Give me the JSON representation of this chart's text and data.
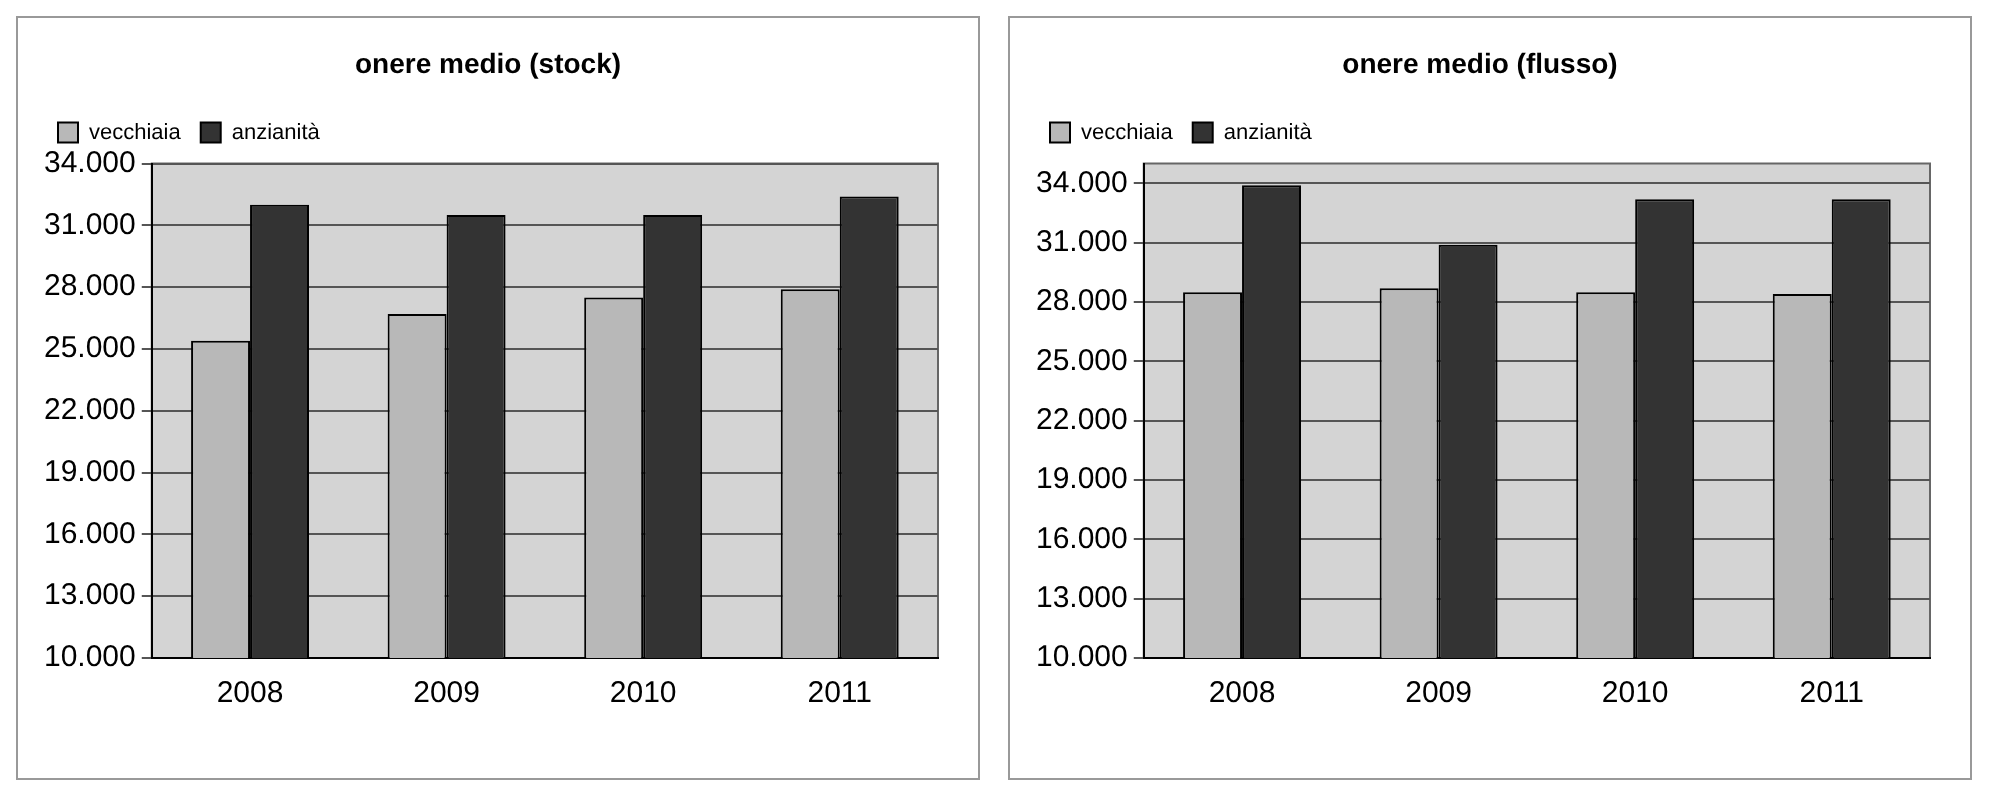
{
  "chart_data": [
    {
      "type": "bar",
      "title": "onere medio (stock)",
      "categories": [
        "2008",
        "2009",
        "2010",
        "2011"
      ],
      "series": [
        {
          "name": "vecchiaia",
          "color": "#b8b8b8",
          "values": [
            25400,
            26700,
            27500,
            27900
          ]
        },
        {
          "name": "anzianità",
          "color": "#333333",
          "values": [
            32000,
            31500,
            31500,
            32400
          ]
        }
      ],
      "ylim": [
        10000,
        34000
      ],
      "yticks": [
        {
          "value": 10000,
          "label": "10.000"
        },
        {
          "value": 13000,
          "label": "13.000"
        },
        {
          "value": 16000,
          "label": "16.000"
        },
        {
          "value": 19000,
          "label": "19.000"
        },
        {
          "value": 22000,
          "label": "22.000"
        },
        {
          "value": 25000,
          "label": "25.000"
        },
        {
          "value": 28000,
          "label": "28.000"
        },
        {
          "value": 31000,
          "label": "31.000"
        },
        {
          "value": 34000,
          "label": "34.000"
        }
      ],
      "grid": "y",
      "legend": "top left"
    },
    {
      "type": "bar",
      "title": "onere medio (flusso)",
      "categories": [
        "2008",
        "2009",
        "2010",
        "2011"
      ],
      "series": [
        {
          "name": "vecchiaia",
          "color": "#b8b8b8",
          "values": [
            28500,
            28700,
            28500,
            28400
          ]
        },
        {
          "name": "anzianità",
          "color": "#333333",
          "values": [
            33900,
            30900,
            33200,
            33200
          ]
        }
      ],
      "ylim": [
        10000,
        35000
      ],
      "yticks": [
        {
          "value": 10000,
          "label": "10.000"
        },
        {
          "value": 13000,
          "label": "13.000"
        },
        {
          "value": 16000,
          "label": "16.000"
        },
        {
          "value": 19000,
          "label": "19.000"
        },
        {
          "value": 22000,
          "label": "22.000"
        },
        {
          "value": 25000,
          "label": "25.000"
        },
        {
          "value": 28000,
          "label": "28.000"
        },
        {
          "value": 31000,
          "label": "31.000"
        },
        {
          "value": 34000,
          "label": "34.000"
        }
      ],
      "grid": "y",
      "legend": "top left"
    }
  ]
}
